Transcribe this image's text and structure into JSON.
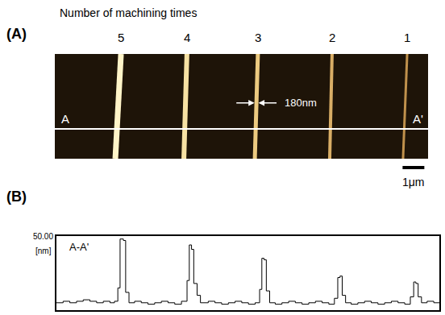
{
  "chart_data": [
    {
      "type": "image",
      "panel": "(A)",
      "title": "Number of machining times",
      "xlim": [
        0,
        17.15
      ],
      "ylim": [
        0,
        4.8
      ],
      "lines": [
        {
          "label": "5",
          "x_bottom": 2.78,
          "x_top": 3.04,
          "color": "#fff4c8"
        },
        {
          "label": "4",
          "x_bottom": 5.93,
          "x_top": 6.07,
          "color": "#f7e2a4"
        },
        {
          "label": "3",
          "x_bottom": 9.19,
          "x_top": 9.33,
          "color": "#ecca80"
        },
        {
          "label": "2",
          "x_bottom": 12.63,
          "x_top": 12.74,
          "color": "#d9ae66"
        },
        {
          "label": "1",
          "x_bottom": 16.0,
          "x_top": 16.19,
          "color": "#c0914c"
        }
      ],
      "profile_line": {
        "y": 1.37,
        "start_label": "A",
        "end_label": "A'"
      },
      "width_marker": {
        "line": "3",
        "width": 0.18,
        "y": 2.56,
        "label": "180nm"
      },
      "scale_bar": {
        "length": 1,
        "label": "1μm"
      },
      "tick_labels": false,
      "grid": false
    },
    {
      "type": "line",
      "panel": "(B)",
      "label": "A-A'",
      "ylabel": "[nm]",
      "x": [
        0.0,
        0.3,
        0.6,
        0.9,
        1.2,
        1.5,
        1.8,
        2.1,
        2.4,
        2.6,
        2.75,
        2.85,
        3.0,
        3.1,
        3.25,
        3.5,
        3.8,
        4.1,
        4.4,
        4.7,
        5.0,
        5.3,
        5.6,
        5.85,
        5.95,
        6.05,
        6.15,
        6.3,
        6.45,
        6.8,
        7.1,
        7.4,
        7.7,
        8.0,
        8.3,
        8.6,
        8.9,
        9.1,
        9.2,
        9.3,
        9.4,
        9.55,
        9.8,
        10.1,
        10.4,
        10.7,
        11.0,
        11.3,
        11.6,
        11.9,
        12.2,
        12.45,
        12.6,
        12.7,
        12.8,
        12.95,
        13.2,
        13.5,
        13.8,
        14.1,
        14.4,
        14.7,
        15.0,
        15.3,
        15.6,
        15.85,
        16.0,
        16.1,
        16.2,
        16.35,
        16.6,
        16.9,
        17.15
      ],
      "values": [
        5,
        6,
        5,
        6,
        7,
        6,
        5,
        6,
        5,
        6,
        15,
        48,
        47,
        12,
        5,
        6,
        5,
        4,
        5,
        6,
        5,
        4,
        6,
        20,
        44,
        41,
        18,
        10,
        5,
        6,
        5,
        4,
        5,
        6,
        5,
        4,
        5,
        14,
        35,
        34,
        13,
        5,
        4,
        5,
        6,
        5,
        4,
        5,
        6,
        5,
        4,
        8,
        22,
        23,
        10,
        5,
        4,
        5,
        6,
        5,
        4,
        5,
        6,
        5,
        4,
        9,
        19,
        18,
        9,
        5,
        6,
        5,
        5
      ],
      "xlim": [
        0,
        17.15
      ],
      "ylim": [
        0,
        50
      ],
      "yticks": [
        {
          "value": 50,
          "label": "50.00"
        }
      ],
      "tick_labels": "y",
      "grid": false,
      "color": "#000000",
      "line_style": "steps"
    }
  ]
}
